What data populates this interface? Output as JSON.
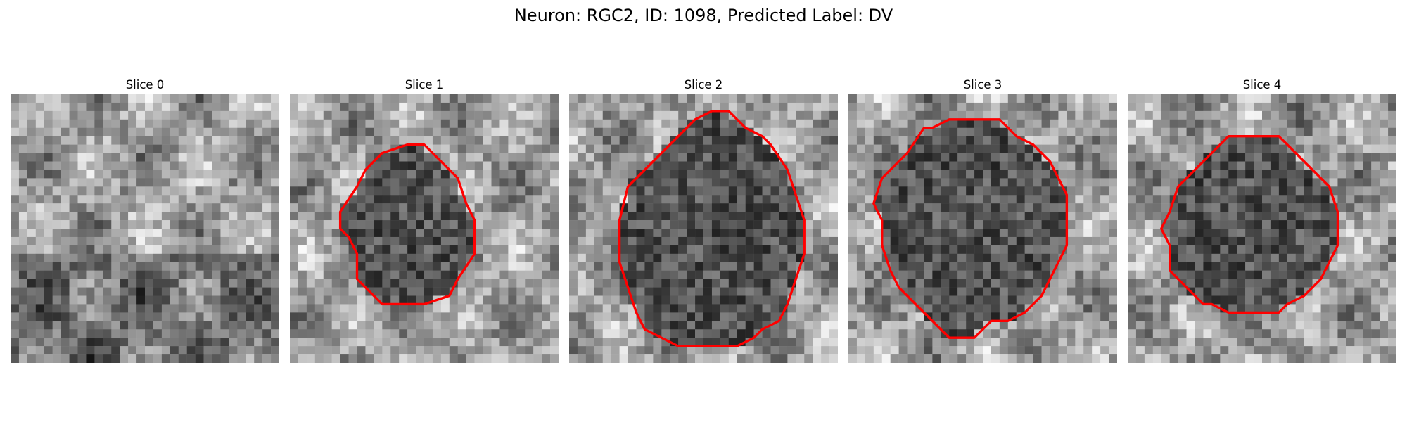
{
  "figure": {
    "title": "Neuron: RGC2, ID: 1098, Predicted Label: DV"
  },
  "panels": [
    {
      "title": "Slice 0",
      "contour": []
    },
    {
      "title": "Slice 1",
      "contour": [
        [
          14,
          6
        ],
        [
          16,
          6
        ],
        [
          18,
          8
        ],
        [
          20,
          10
        ],
        [
          21,
          13
        ],
        [
          22,
          15
        ],
        [
          22,
          19
        ],
        [
          20,
          22
        ],
        [
          19,
          24
        ],
        [
          16,
          25
        ],
        [
          11,
          25
        ],
        [
          8,
          22
        ],
        [
          8,
          19
        ],
        [
          7,
          17
        ],
        [
          6,
          16
        ],
        [
          6,
          14
        ],
        [
          8,
          11
        ],
        [
          9,
          9
        ],
        [
          11,
          7
        ]
      ]
    },
    {
      "title": "Slice 2",
      "contour": [
        [
          17,
          2
        ],
        [
          19,
          2
        ],
        [
          21,
          4
        ],
        [
          23,
          5
        ],
        [
          24,
          6
        ],
        [
          26,
          9
        ],
        [
          27,
          12
        ],
        [
          28,
          15
        ],
        [
          28,
          19
        ],
        [
          27,
          22
        ],
        [
          26,
          25
        ],
        [
          25,
          27
        ],
        [
          23,
          28
        ],
        [
          22,
          29
        ],
        [
          20,
          30
        ],
        [
          13,
          30
        ],
        [
          11,
          29
        ],
        [
          9,
          28
        ],
        [
          8,
          26
        ],
        [
          7,
          23
        ],
        [
          6,
          20
        ],
        [
          6,
          15
        ],
        [
          7,
          11
        ],
        [
          9,
          9
        ],
        [
          11,
          7
        ],
        [
          13,
          5
        ],
        [
          15,
          3
        ]
      ]
    },
    {
      "title": "Slice 3",
      "contour": [
        [
          12,
          3
        ],
        [
          18,
          3
        ],
        [
          20,
          5
        ],
        [
          22,
          6
        ],
        [
          24,
          8
        ],
        [
          25,
          10
        ],
        [
          26,
          12
        ],
        [
          26,
          18
        ],
        [
          25,
          20
        ],
        [
          24,
          22
        ],
        [
          23,
          24
        ],
        [
          21,
          26
        ],
        [
          19,
          27
        ],
        [
          17,
          27
        ],
        [
          15,
          29
        ],
        [
          12,
          29
        ],
        [
          10,
          27
        ],
        [
          8,
          25
        ],
        [
          6,
          23
        ],
        [
          5,
          21
        ],
        [
          4,
          18
        ],
        [
          4,
          15
        ],
        [
          3,
          13
        ],
        [
          4,
          10
        ],
        [
          5,
          9
        ],
        [
          7,
          7
        ],
        [
          9,
          4
        ],
        [
          10,
          4
        ]
      ]
    },
    {
      "title": "Slice 4",
      "contour": [
        [
          12,
          5
        ],
        [
          18,
          5
        ],
        [
          20,
          7
        ],
        [
          22,
          9
        ],
        [
          24,
          11
        ],
        [
          25,
          14
        ],
        [
          25,
          18
        ],
        [
          24,
          20
        ],
        [
          23,
          22
        ],
        [
          21,
          24
        ],
        [
          19,
          25
        ],
        [
          18,
          26
        ],
        [
          12,
          26
        ],
        [
          10,
          25
        ],
        [
          9,
          25
        ],
        [
          7,
          23
        ],
        [
          5,
          21
        ],
        [
          5,
          18
        ],
        [
          4,
          16
        ],
        [
          5,
          14
        ],
        [
          6,
          11
        ],
        [
          8,
          9
        ],
        [
          10,
          7
        ]
      ]
    }
  ],
  "colors": {
    "contour": "#ff0000"
  }
}
